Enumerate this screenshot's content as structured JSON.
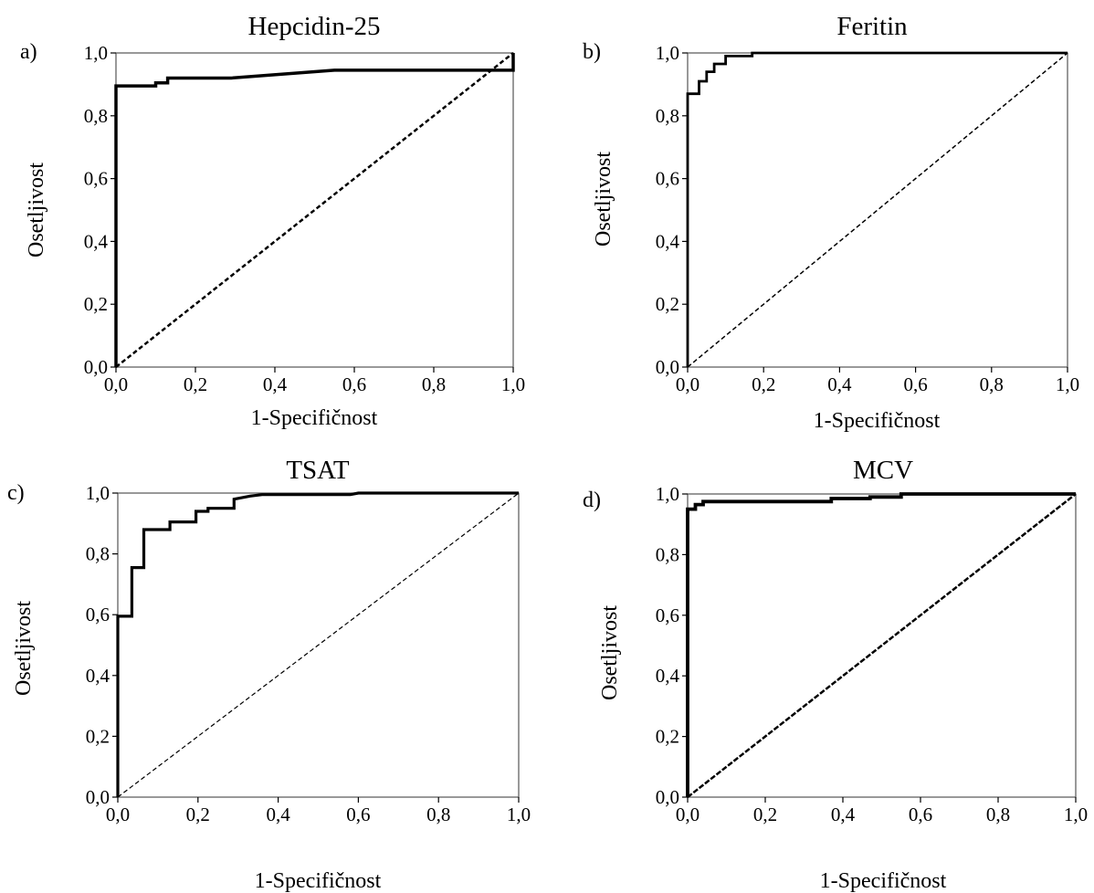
{
  "chart_data": [
    {
      "type": "line",
      "panel_label": "a)",
      "title": "Hepcidin-25",
      "xlabel": "1-Specifičnost",
      "ylabel": "Osetljivost",
      "xlim": [
        0,
        1
      ],
      "ylim": [
        0,
        1
      ],
      "x_ticks": [
        "0,0",
        "0,2",
        "0,4",
        "0,6",
        "0,8",
        "1,0"
      ],
      "y_ticks": [
        "0,0",
        "0,2",
        "0,4",
        "0,6",
        "0,8",
        "1,0"
      ],
      "grid": false,
      "series": [
        {
          "role": "roc_curve",
          "x": [
            0,
            0,
            0.1,
            0.1,
            0.13,
            0.13,
            0.29,
            0.55,
            1.0,
            1.0,
            1.0
          ],
          "y": [
            0,
            0.895,
            0.895,
            0.905,
            0.905,
            0.92,
            0.92,
            0.945,
            0.945,
            0.975,
            1.0
          ]
        },
        {
          "role": "reference_line",
          "x": [
            0,
            1
          ],
          "y": [
            0,
            1
          ]
        }
      ]
    },
    {
      "type": "line",
      "panel_label": "b)",
      "title": "Feritin",
      "xlabel": "1-Specifičnost",
      "ylabel": "Osetljivost",
      "xlim": [
        0,
        1
      ],
      "ylim": [
        0,
        1
      ],
      "x_ticks": [
        "0,0",
        "0,2",
        "0,4",
        "0,6",
        "0,8",
        "1,0"
      ],
      "y_ticks": [
        "0,0",
        "0,2",
        "0,4",
        "0,6",
        "0,8",
        "1,0"
      ],
      "grid": false,
      "series": [
        {
          "role": "roc_curve",
          "x": [
            0,
            0,
            0.03,
            0.03,
            0.05,
            0.05,
            0.07,
            0.07,
            0.1,
            0.1,
            0.13,
            0.17,
            0.17,
            0.25,
            1.0
          ],
          "y": [
            0,
            0.87,
            0.87,
            0.91,
            0.91,
            0.94,
            0.94,
            0.965,
            0.965,
            0.99,
            0.99,
            0.99,
            1.0,
            1.0,
            1.0
          ]
        },
        {
          "role": "reference_line",
          "x": [
            0,
            1
          ],
          "y": [
            0,
            1
          ]
        }
      ]
    },
    {
      "type": "line",
      "panel_label": "c)",
      "title": "TSAT",
      "xlabel": "1-Specifičnost",
      "ylabel": "Osetljivost",
      "xlim": [
        0,
        1
      ],
      "ylim": [
        0,
        1
      ],
      "x_ticks": [
        "0,0",
        "0,2",
        "0,4",
        "0,6",
        "0,8",
        "1,0"
      ],
      "y_ticks": [
        "0,0",
        "0,2",
        "0,4",
        "0,6",
        "0,8",
        "1,0"
      ],
      "grid": false,
      "series": [
        {
          "role": "roc_curve",
          "x": [
            0,
            0,
            0.035,
            0.035,
            0.065,
            0.065,
            0.13,
            0.13,
            0.195,
            0.195,
            0.225,
            0.225,
            0.29,
            0.29,
            0.33,
            0.36,
            0.58,
            0.6,
            1.0
          ],
          "y": [
            0,
            0.595,
            0.595,
            0.755,
            0.755,
            0.88,
            0.88,
            0.905,
            0.905,
            0.94,
            0.94,
            0.95,
            0.95,
            0.98,
            0.99,
            0.995,
            0.995,
            1.0,
            1.0
          ]
        },
        {
          "role": "reference_line",
          "x": [
            0,
            1
          ],
          "y": [
            0,
            1
          ]
        }
      ]
    },
    {
      "type": "line",
      "panel_label": "d)",
      "title": "MCV",
      "xlabel": "1-Specifičnost",
      "ylabel": "Osetljivost",
      "xlim": [
        0,
        1
      ],
      "ylim": [
        0,
        1
      ],
      "x_ticks": [
        "0,0",
        "0,2",
        "0,4",
        "0,6",
        "0,8",
        "1,0"
      ],
      "y_ticks": [
        "0,0",
        "0,2",
        "0,4",
        "0,6",
        "0,8",
        "1,0"
      ],
      "grid": false,
      "series": [
        {
          "role": "roc_curve",
          "x": [
            0,
            0,
            0.02,
            0.02,
            0.04,
            0.04,
            0.37,
            0.37,
            0.47,
            0.47,
            0.55,
            0.55,
            1.0
          ],
          "y": [
            0,
            0.95,
            0.95,
            0.965,
            0.965,
            0.975,
            0.975,
            0.985,
            0.985,
            0.99,
            0.99,
            1.0,
            1.0
          ]
        },
        {
          "role": "reference_line",
          "x": [
            0,
            1
          ],
          "y": [
            0,
            1
          ]
        }
      ]
    }
  ]
}
